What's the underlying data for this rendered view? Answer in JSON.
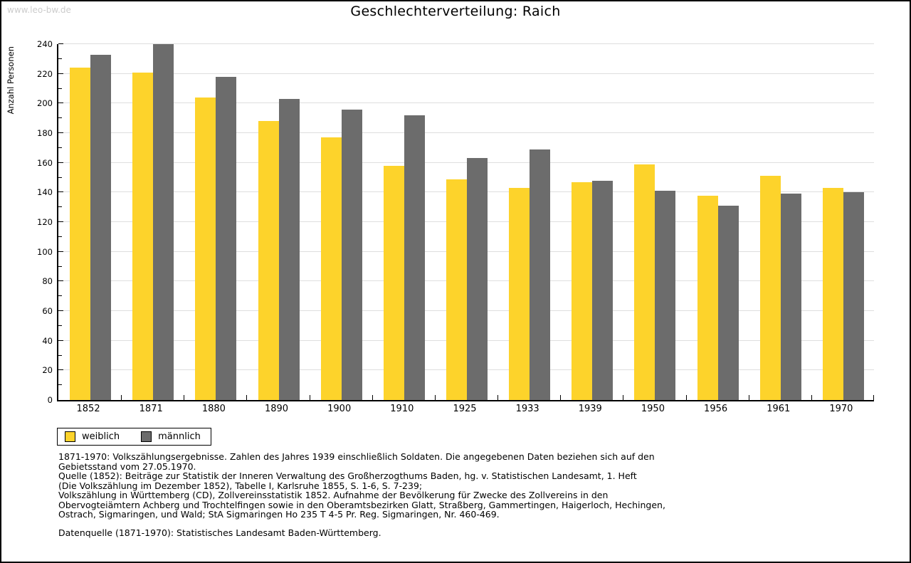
{
  "watermark": "www.leo-bw.de",
  "title": "Geschlechterverteilung: Raich",
  "chart_data": {
    "type": "bar",
    "title": "Geschlechterverteilung: Raich",
    "xlabel": "",
    "ylabel": "Anzahl Personen",
    "ylim": [
      0,
      240
    ],
    "ytick_step": 20,
    "minor_tick_step": 10,
    "grid": true,
    "legend_position": "bottom-left",
    "categories": [
      "1852",
      "1871",
      "1880",
      "1890",
      "1900",
      "1910",
      "1925",
      "1933",
      "1939",
      "1950",
      "1956",
      "1961",
      "1970"
    ],
    "series": [
      {
        "name": "weiblich",
        "color": "#FDD32B",
        "values": [
          224,
          221,
          204,
          188,
          177,
          158,
          149,
          143,
          147,
          159,
          138,
          151,
          143
        ]
      },
      {
        "name": "männlich",
        "color": "#6C6C6C",
        "values": [
          233,
          240,
          218,
          203,
          196,
          192,
          163,
          169,
          148,
          141,
          131,
          139,
          140
        ]
      }
    ]
  },
  "colors": {
    "gridline": "#DEDEDE",
    "axis": "#000000",
    "watermark": "#CCCCCC"
  },
  "footnotes": {
    "lines": [
      "1871-1970: Volkszählungsergebnisse. Zahlen des Jahres 1939 einschließlich Soldaten. Die angegebenen Daten beziehen sich auf den",
      "Gebietsstand vom 27.05.1970.",
      "Quelle (1852): Beiträge zur Statistik der Inneren Verwaltung des Großherzogthums Baden, hg. v. Statistischen Landesamt, 1. Heft",
      "(Die Volkszählung im Dezember 1852), Tabelle I, Karlsruhe 1855, S. 1-6, S. 7-239;",
      "Volkszählung in Württemberg (CD), Zollvereinsstatistik 1852. Aufnahme der Bevölkerung für Zwecke des Zollvereins in den",
      "Obervogteiämtern Achberg und Trochtelfingen sowie in den Oberamtsbezirken Glatt, Straßberg, Gammertingen, Haigerloch, Hechingen,",
      "Ostrach, Sigmaringen, und Wald; StA Sigmaringen Ho 235 T 4-5 Pr. Reg. Sigmaringen, Nr. 460-469."
    ],
    "datasource": "Datenquelle (1871-1970): Statistisches Landesamt Baden-Württemberg."
  }
}
